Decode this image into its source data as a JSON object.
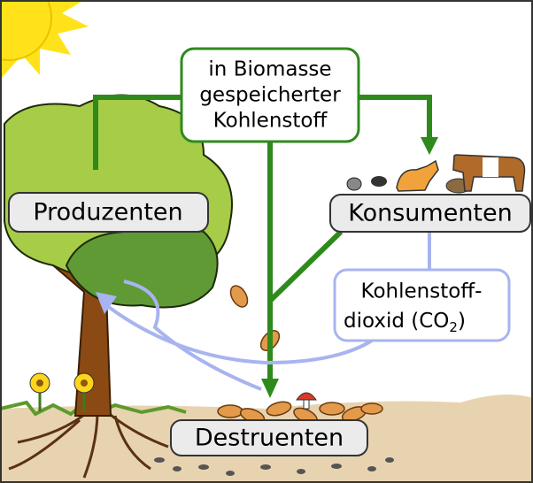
{
  "nodes": {
    "biomass": {
      "lines": [
        "in Biomasse",
        "gespeicherter",
        "Kohlenstoff"
      ]
    },
    "producers": {
      "label": "Produzenten"
    },
    "consumers": {
      "label": "Konsumenten"
    },
    "carbon_dioxide": {
      "lines": [
        "Kohlenstoff-",
        "dioxid (CO"
      ],
      "subscript": "2",
      "suffix": ")"
    },
    "decomposers": {
      "label": "Destruenten"
    }
  }
}
